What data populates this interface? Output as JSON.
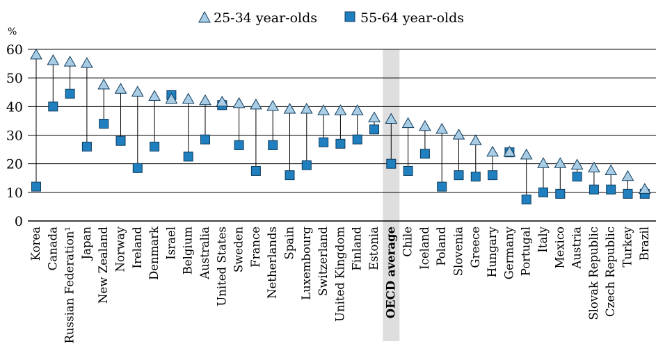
{
  "chart_data": {
    "type": "scatter",
    "ylabel": "%",
    "ylim": [
      0,
      60
    ],
    "yticks": [
      0,
      10,
      20,
      30,
      40,
      50,
      60
    ],
    "grid": true,
    "legend_position": "top-center",
    "highlight_category": "OECD average",
    "colors": {
      "triangle_fill": "#a9cde4",
      "square_fill": "#1f7fbf",
      "marker_stroke": "#0d3a5c",
      "highlight_band": "#dedede",
      "grid": "#000000"
    },
    "categories": [
      "Korea",
      "Canada",
      "Russian Federation¹",
      "Japan",
      "New Zealand",
      "Norway",
      "Ireland",
      "Denmark",
      "Israel",
      "Belgium",
      "Australia",
      "United States",
      "Sweden",
      "France",
      "Netherlands",
      "Spain",
      "Luxembourg",
      "Switzerland",
      "United Kingdom",
      "Finland",
      "Estonia",
      "OECD average",
      "Chile",
      "Iceland",
      "Poland",
      "Slovenia",
      "Greece",
      "Hungary",
      "Germany",
      "Portugal",
      "Italy",
      "Mexico",
      "Austria",
      "Slovak Republic",
      "Czech Republic",
      "Turkey",
      "Brazil"
    ],
    "series": [
      {
        "name": "25-34 year-olds",
        "marker": "triangle",
        "values": [
          58,
          56,
          55.5,
          55,
          47.5,
          46,
          45,
          43.5,
          42.5,
          42.5,
          42,
          41.5,
          41,
          40.5,
          40,
          39,
          39,
          38.5,
          38.5,
          38.5,
          36,
          35.5,
          34,
          33,
          32,
          30,
          28,
          24,
          24,
          23,
          20,
          20,
          19.5,
          18.5,
          17.5,
          15.5,
          11
        ]
      },
      {
        "name": "55-64 year-olds",
        "marker": "square",
        "values": [
          12,
          40,
          44.5,
          26,
          34,
          28,
          18.5,
          26,
          44,
          22.5,
          28.5,
          40.5,
          26.5,
          17.5,
          26.5,
          16,
          19.5,
          27.5,
          27,
          28.5,
          32,
          20,
          17.5,
          23.5,
          12,
          16,
          15.5,
          16,
          24,
          7.5,
          10,
          9.5,
          15.5,
          11,
          11,
          9.5,
          9.5
        ]
      }
    ]
  }
}
